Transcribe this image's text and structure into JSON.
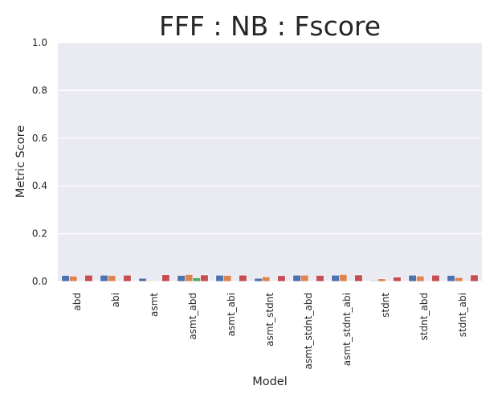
{
  "chart_data": {
    "type": "bar",
    "title": "FFF : NB : Fscore",
    "xlabel": "Model",
    "ylabel": "Metric Score",
    "ylim": [
      0,
      1
    ],
    "yticks": [
      "0.0",
      "0.2",
      "0.4",
      "0.6",
      "0.8",
      "1.0"
    ],
    "grid": true,
    "legend": "none",
    "categories": [
      "abd",
      "abi",
      "asmt",
      "asmt_abd",
      "asmt_abi",
      "asmt_stdnt",
      "asmt_stdnt_abd",
      "asmt_stdnt_abi",
      "stdnt",
      "stdnt_abd",
      "stdnt_abi"
    ],
    "series": [
      {
        "color": "#4c72b0",
        "values": [
          0.025,
          0.026,
          0.013,
          0.025,
          0.026,
          0.013,
          0.026,
          0.026,
          0.003,
          0.026,
          0.025
        ]
      },
      {
        "color": "#dd8452",
        "values": [
          0.022,
          0.025,
          0.003,
          0.029,
          0.025,
          0.019,
          0.026,
          0.029,
          0.011,
          0.022,
          0.016
        ]
      },
      {
        "color": "#55a868",
        "values": [
          0.0,
          0.0,
          0.0,
          0.015,
          0.0,
          0.0,
          0.0,
          0.0,
          0.0,
          0.0,
          0.0
        ]
      },
      {
        "color": "#c44e52",
        "values": [
          0.026,
          0.026,
          0.028,
          0.027,
          0.026,
          0.024,
          0.025,
          0.027,
          0.018,
          0.026,
          0.027
        ]
      }
    ]
  }
}
